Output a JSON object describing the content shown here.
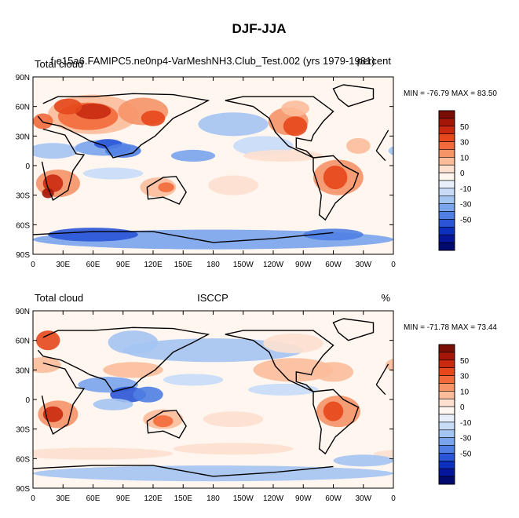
{
  "figure": {
    "title": "DJF-JJA"
  },
  "chart_data": [
    {
      "type": "heatmap",
      "left_label": "Total cloud",
      "center_label": "f.e15a6.FAMIPC5.ne0np4-VarMeshNH3.Club_Test.002 (yrs 1979-1981)",
      "right_label": "percent",
      "stats": "MIN = -76.79 MAX =  83.50",
      "x_ticks": [
        "0",
        "30E",
        "60E",
        "90E",
        "120E",
        "150E",
        "180",
        "150W",
        "120W",
        "90W",
        "60W",
        "30W",
        "0"
      ],
      "y_ticks": [
        "90N",
        "60N",
        "30N",
        "0",
        "30S",
        "60S",
        "90S"
      ],
      "xlim": [
        0,
        360
      ],
      "ylim": [
        -90,
        90
      ],
      "colorbar_labels": [
        "50",
        "30",
        "10",
        "0",
        "-10",
        "-30",
        "-50"
      ]
    },
    {
      "type": "heatmap",
      "left_label": "Total cloud",
      "center_label": "ISCCP",
      "right_label": "%",
      "stats": "MIN = -71.78 MAX =  73.44",
      "x_ticks": [
        "0",
        "30E",
        "60E",
        "90E",
        "120E",
        "150E",
        "180",
        "150W",
        "120W",
        "90W",
        "60W",
        "30W",
        "0"
      ],
      "y_ticks": [
        "90N",
        "60N",
        "30N",
        "0",
        "30S",
        "60S",
        "90S"
      ],
      "xlim": [
        0,
        360
      ],
      "ylim": [
        -90,
        90
      ],
      "colorbar_labels": [
        "50",
        "30",
        "10",
        "0",
        "-10",
        "-30",
        "-50"
      ]
    }
  ],
  "colors": {
    "levels": [
      "#7a0d06",
      "#a51508",
      "#c92a0f",
      "#e6481c",
      "#f26a3b",
      "#f69468",
      "#fbbc9a",
      "#fde0cf",
      "#fff6f0",
      "#e8f0fb",
      "#c8dcf8",
      "#a4c4f2",
      "#7aa4ec",
      "#4f7fe3",
      "#2a55d6",
      "#0d2fbd",
      "#05169a",
      "#020a70"
    ]
  }
}
